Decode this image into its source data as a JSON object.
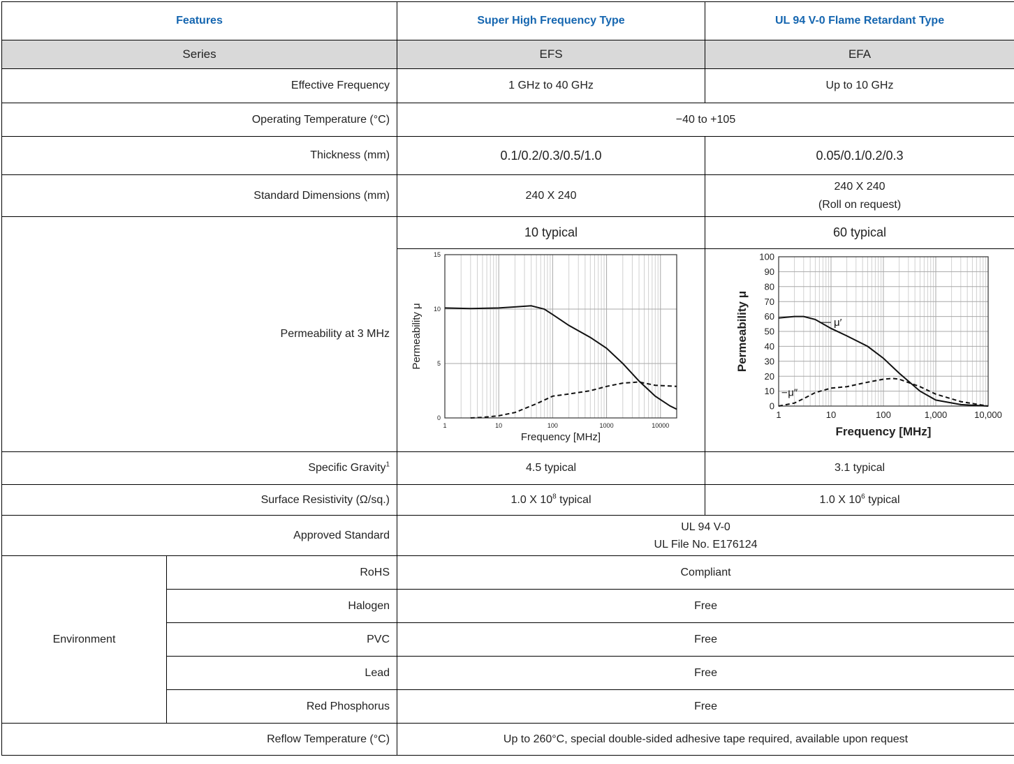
{
  "header": {
    "features": "Features",
    "efs_type": "Super High Frequency Type",
    "efa_type": "UL 94 V-0 Flame Retardant Type"
  },
  "series": {
    "label": "Series",
    "efs": "EFS",
    "efa": "EFA"
  },
  "rows": {
    "frequency": {
      "label": "Effective Frequency",
      "efs": "1 GHz to 40 GHz",
      "efa": "Up to 10 GHz"
    },
    "temperature": {
      "label": "Operating Temperature (°C)",
      "value": "−40 to +105"
    },
    "thickness": {
      "label": "Thickness (mm)",
      "efs": "0.1/0.2/0.3/0.5/1.0",
      "efa": "0.05/0.1/0.2/0.3"
    },
    "dimensions": {
      "label": "Standard Dimensions (mm)",
      "efs": "240 X 240",
      "efa_line1": "240 X 240",
      "efa_line2": "(Roll on request)"
    },
    "permeability": {
      "label": "Permeability at 3 MHz",
      "efs": "10 typical",
      "efa": "60 typical"
    },
    "gravity": {
      "label": "Specific Gravity",
      "label_sup": "1",
      "efs": "4.5 typical",
      "efa": "3.1 typical"
    },
    "resistivity": {
      "label": "Surface Resistivity (Ω/sq.)",
      "efs_base": "1.0 X 10",
      "efs_exp": "8",
      "efs_suffix": " typical",
      "efa_base": "1.0 X 10",
      "efa_exp": "6",
      "efa_suffix": " typical"
    },
    "standard": {
      "label": "Approved Standard",
      "line1": "UL 94 V-0",
      "line2": "UL File No. E176124"
    },
    "environment": {
      "label": "Environment",
      "items": [
        {
          "label": "RoHS",
          "value": "Compliant"
        },
        {
          "label": "Halogen",
          "value": "Free"
        },
        {
          "label": "PVC",
          "value": "Free"
        },
        {
          "label": "Lead",
          "value": "Free"
        },
        {
          "label": "Red Phosphorus",
          "value": "Free"
        }
      ]
    },
    "reflow": {
      "label": "Reflow Temperature (°C)",
      "value": "Up to 260°C, special double-sided adhesive tape required, available upon request"
    }
  },
  "chart_data": [
    {
      "type": "line",
      "xscale": "log",
      "xlim": [
        1,
        20000
      ],
      "ylim": [
        0,
        15
      ],
      "xticks": [
        "1",
        "10",
        "100",
        "1000",
        "10000"
      ],
      "yticks": [
        "0",
        "5",
        "10",
        "15"
      ],
      "xlabel": "Frequency [MHz]",
      "ylabel": "Permeability  μ",
      "grid": true,
      "series": [
        {
          "style": "solid",
          "x": [
            1,
            3,
            10,
            20,
            40,
            70,
            100,
            200,
            500,
            1000,
            2000,
            4000,
            8000,
            15000,
            20000
          ],
          "y": [
            10.1,
            10.05,
            10.1,
            10.2,
            10.3,
            10.0,
            9.5,
            8.5,
            7.4,
            6.4,
            5.0,
            3.4,
            2.0,
            1.1,
            0.8
          ]
        },
        {
          "style": "dashed",
          "x": [
            3,
            5,
            10,
            20,
            50,
            100,
            200,
            500,
            1000,
            2000,
            4000,
            8000,
            20000
          ],
          "y": [
            0.0,
            0.05,
            0.2,
            0.5,
            1.3,
            2.0,
            2.2,
            2.5,
            2.9,
            3.2,
            3.3,
            3.0,
            2.9
          ]
        }
      ]
    },
    {
      "type": "line",
      "xscale": "log",
      "xlim": [
        1,
        10000
      ],
      "ylim": [
        0,
        100
      ],
      "xticks": [
        "1",
        "10",
        "100",
        "1,000",
        "10,000"
      ],
      "yticks": [
        "0",
        "10",
        "20",
        "30",
        "40",
        "50",
        "60",
        "70",
        "80",
        "90",
        "100"
      ],
      "xlabel": "Frequency [MHz]",
      "ylabel": "Permeability μ",
      "grid": true,
      "series": [
        {
          "name": "μ′",
          "style": "solid",
          "x": [
            1,
            2,
            3,
            5,
            10,
            20,
            50,
            100,
            200,
            500,
            1000,
            3000,
            10000
          ],
          "y": [
            59,
            60,
            60,
            58,
            52,
            47,
            40,
            32,
            22,
            10,
            4,
            1,
            0
          ]
        },
        {
          "name": "μ″",
          "style": "dashed",
          "x": [
            1,
            2,
            3,
            5,
            10,
            20,
            50,
            100,
            150,
            200,
            500,
            1000,
            3000,
            10000
          ],
          "y": [
            0,
            2,
            5,
            9,
            12,
            13,
            16,
            18,
            18.5,
            18,
            13,
            8,
            3,
            0
          ]
        }
      ]
    }
  ]
}
